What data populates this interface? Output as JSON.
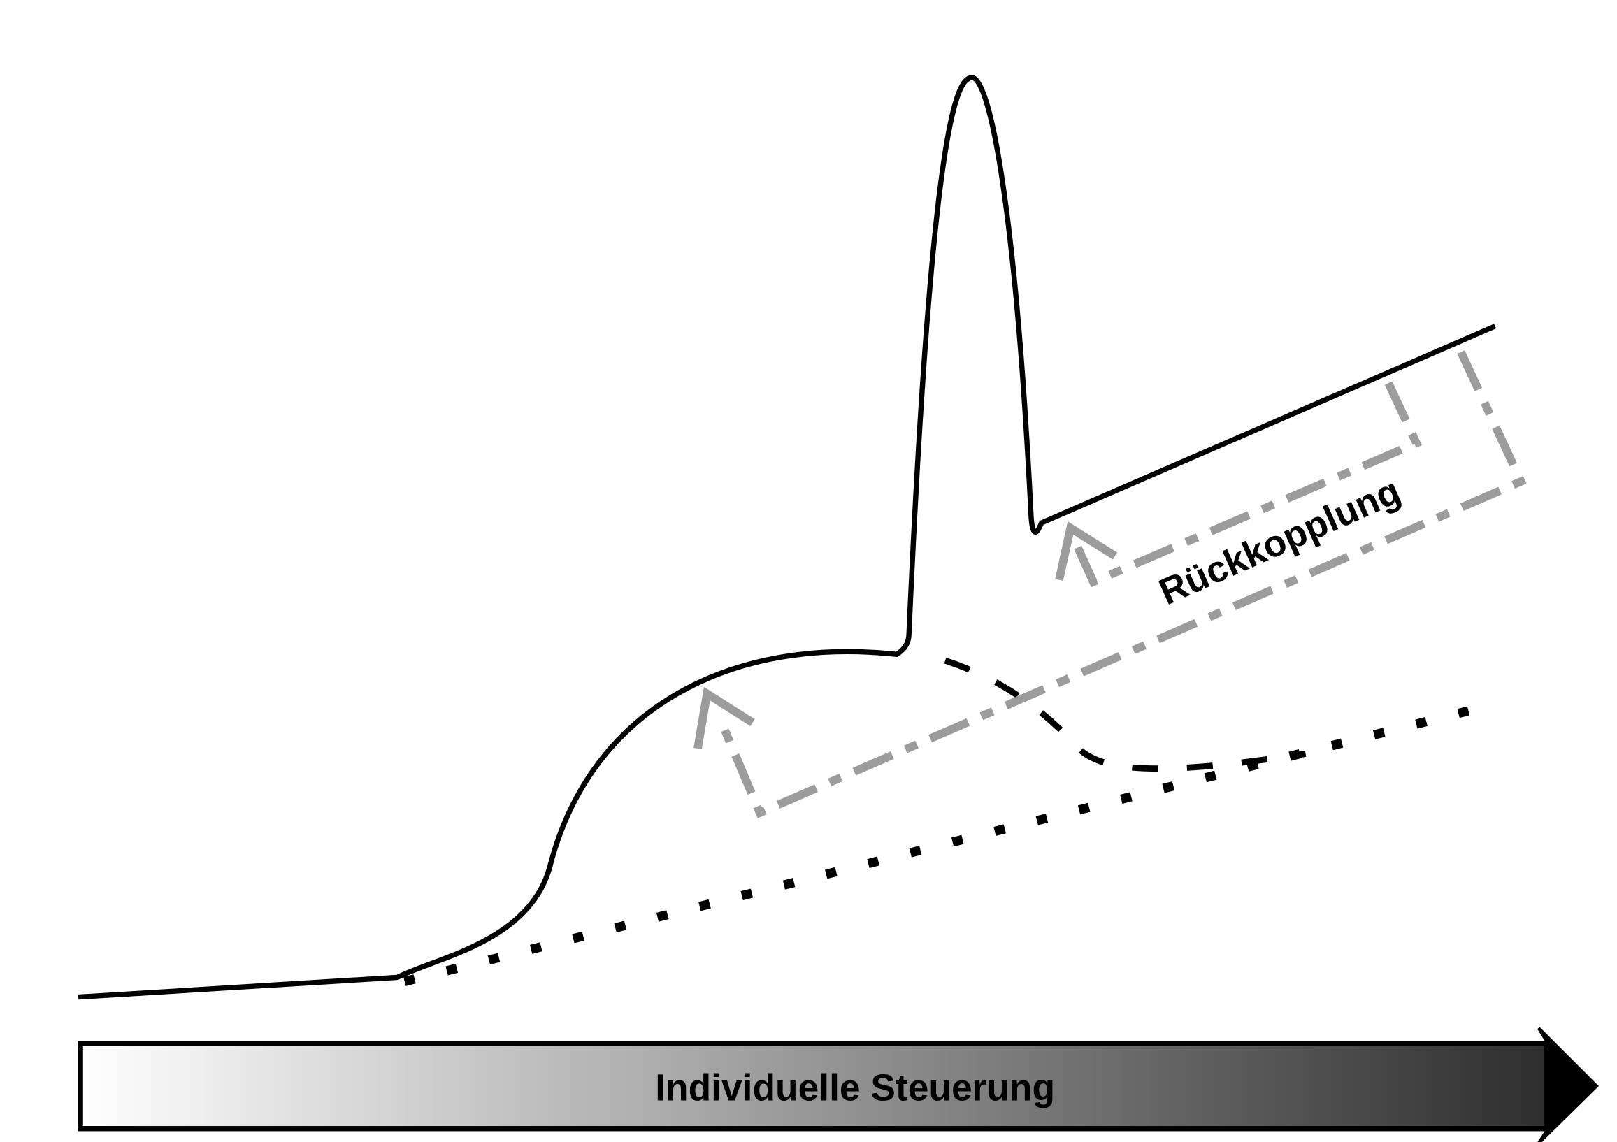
{
  "labels": {
    "feedback": "Rückkopplung",
    "axis": "Individuelle Steuerung"
  }
}
